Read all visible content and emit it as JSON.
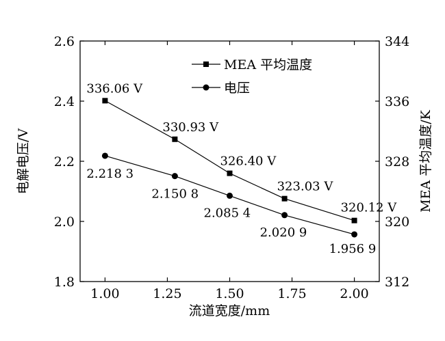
{
  "chart_data": {
    "type": "line",
    "xlabel": "流道宽度/mm",
    "ylabel_left": "电解电压/V",
    "ylabel_right": "MEA 平均温度/K",
    "x": [
      1.0,
      1.28,
      1.5,
      1.72,
      2.0
    ],
    "x_ticks": [
      "1.00",
      "1.25",
      "1.50",
      "1.75",
      "2.00"
    ],
    "x_tick_values": [
      1.0,
      1.25,
      1.5,
      1.75,
      2.0
    ],
    "xlim": [
      0.9,
      2.1
    ],
    "ylim_left": [
      1.8,
      2.6
    ],
    "y_ticks_left": [
      "1.8",
      "2.0",
      "2.2",
      "2.4",
      "2.6"
    ],
    "ylim_right": [
      312,
      344
    ],
    "y_ticks_right": [
      "312",
      "320",
      "328",
      "336",
      "344"
    ],
    "grid": false,
    "legend_position": "top",
    "series": [
      {
        "name": "MEA 平均温度",
        "axis": "right",
        "marker": "square",
        "values": [
          336.06,
          330.93,
          326.4,
          323.03,
          320.12
        ],
        "labels": [
          "336.06 V",
          "330.93 V",
          "326.40 V",
          "323.03 V",
          "320.12 V"
        ]
      },
      {
        "name": "电压",
        "axis": "left",
        "marker": "circle",
        "values": [
          2.2183,
          2.1508,
          2.0854,
          2.0209,
          1.9569
        ],
        "labels": [
          "2.218 3",
          "2.150 8",
          "2.085 4",
          "2.020 9",
          "1.956 9"
        ]
      }
    ]
  }
}
